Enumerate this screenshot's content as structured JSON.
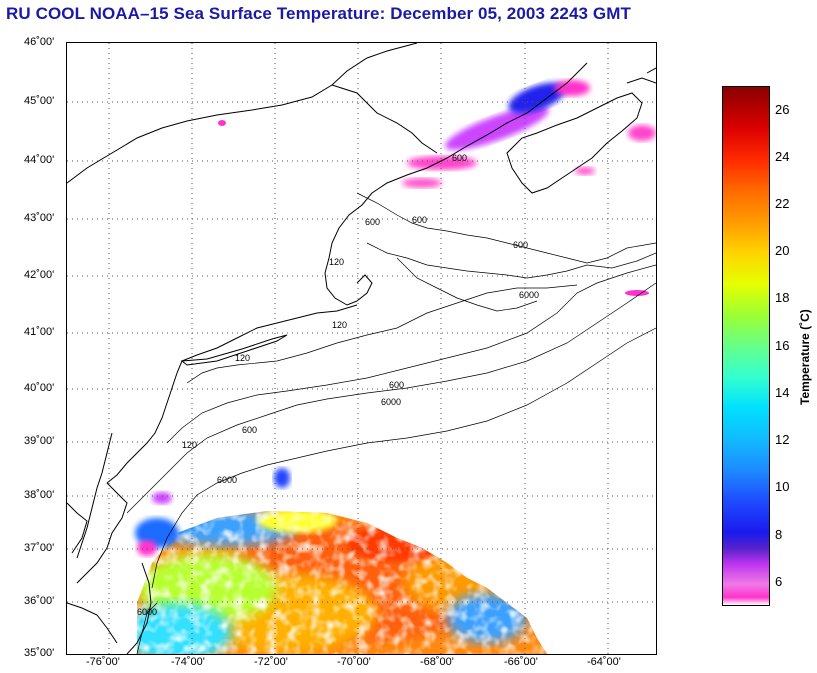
{
  "title": "RU COOL  NOAA–15  Sea Surface Temperature:  December 05, 2003 2243 GMT",
  "y_axis_labels": [
    "46˚00'",
    "45˚00'",
    "44˚00'",
    "43˚00'",
    "42˚00'",
    "41˚00'",
    "40˚00'",
    "39˚00'",
    "38˚00'",
    "37˚00'",
    "36˚00'",
    "35˚00'"
  ],
  "x_axis_labels": [
    "-76˚00'",
    "-74˚00'",
    "-72˚00'",
    "-70˚00'",
    "-68˚00'",
    "-66˚00'",
    "-64˚00'"
  ],
  "colorbar": {
    "label": "Temperature (˚C)",
    "ticks": [
      "26",
      "24",
      "22",
      "20",
      "18",
      "16",
      "14",
      "12",
      "10",
      "8",
      "6"
    ],
    "min": 5,
    "max": 27
  },
  "contour_labels": [
    "120",
    "120",
    "120",
    "120",
    "600",
    "600",
    "600",
    "600",
    "600",
    "600",
    "6000",
    "6000",
    "6000",
    "6000"
  ],
  "colors": {
    "title": "#1a1aa6",
    "coastline": "#000000",
    "grid": "#555555"
  }
}
